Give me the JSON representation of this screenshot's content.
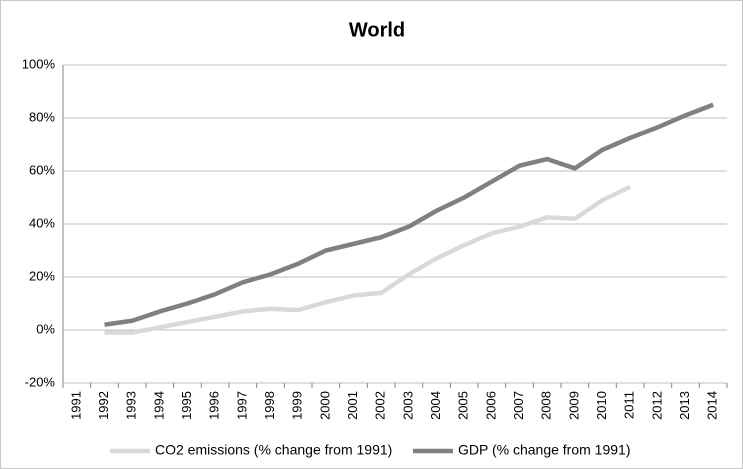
{
  "chart_data": {
    "type": "line",
    "title": "World",
    "categories": [
      "1991",
      "1992",
      "1993",
      "1994",
      "1995",
      "1996",
      "1997",
      "1998",
      "1999",
      "2000",
      "2001",
      "2002",
      "2003",
      "2004",
      "2005",
      "2006",
      "2007",
      "2008",
      "2009",
      "2010",
      "2011",
      "2012",
      "2013",
      "2014"
    ],
    "series": [
      {
        "name": "CO2 emissions (% change from 1991)",
        "color": "#d9d9d9",
        "values": [
          null,
          -1,
          -1,
          1,
          3,
          5,
          7,
          8,
          7.5,
          10.5,
          13,
          14,
          21,
          27,
          32,
          36.5,
          39,
          42.5,
          42,
          49,
          54,
          null,
          null,
          null
        ]
      },
      {
        "name": "GDP (% change from 1991)",
        "color": "#808080",
        "values": [
          null,
          2,
          3.5,
          7,
          10,
          13.5,
          18,
          21,
          25,
          30,
          32.5,
          35,
          39,
          45,
          50,
          56,
          62,
          64.5,
          61,
          68,
          72.5,
          76.5,
          81,
          85
        ]
      }
    ],
    "ylim": [
      -20,
      100
    ],
    "yticks": [
      {
        "value": -20,
        "label": "-20%"
      },
      {
        "value": 0,
        "label": "0%"
      },
      {
        "value": 20,
        "label": "20%"
      },
      {
        "value": 40,
        "label": "40%"
      },
      {
        "value": 60,
        "label": "60%"
      },
      {
        "value": 80,
        "label": "80%"
      },
      {
        "value": 100,
        "label": "100%"
      }
    ],
    "grid": true,
    "legend": "bottom"
  }
}
